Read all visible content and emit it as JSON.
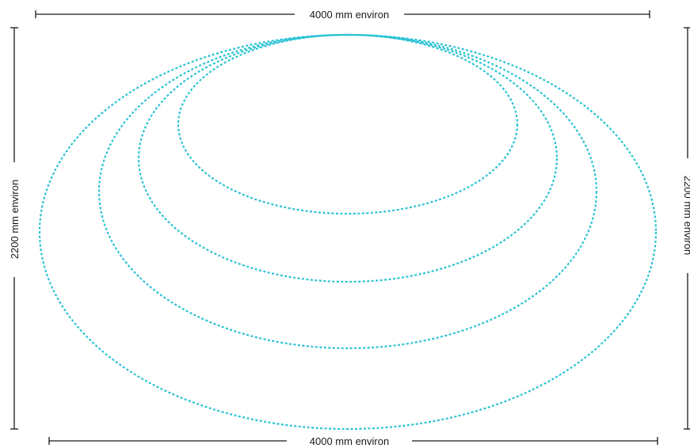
{
  "colors": {
    "ring_stroke": "#2bc3d4",
    "dimension_line": "#1a1a1a"
  },
  "dimensions": {
    "top_label": "4000 mm environ",
    "bottom_label": "4000 mm environ",
    "left_label": "2200 mm environ",
    "right_label": "2200 mm environ"
  },
  "rings": {
    "count": 4,
    "line_style": "dashed"
  }
}
